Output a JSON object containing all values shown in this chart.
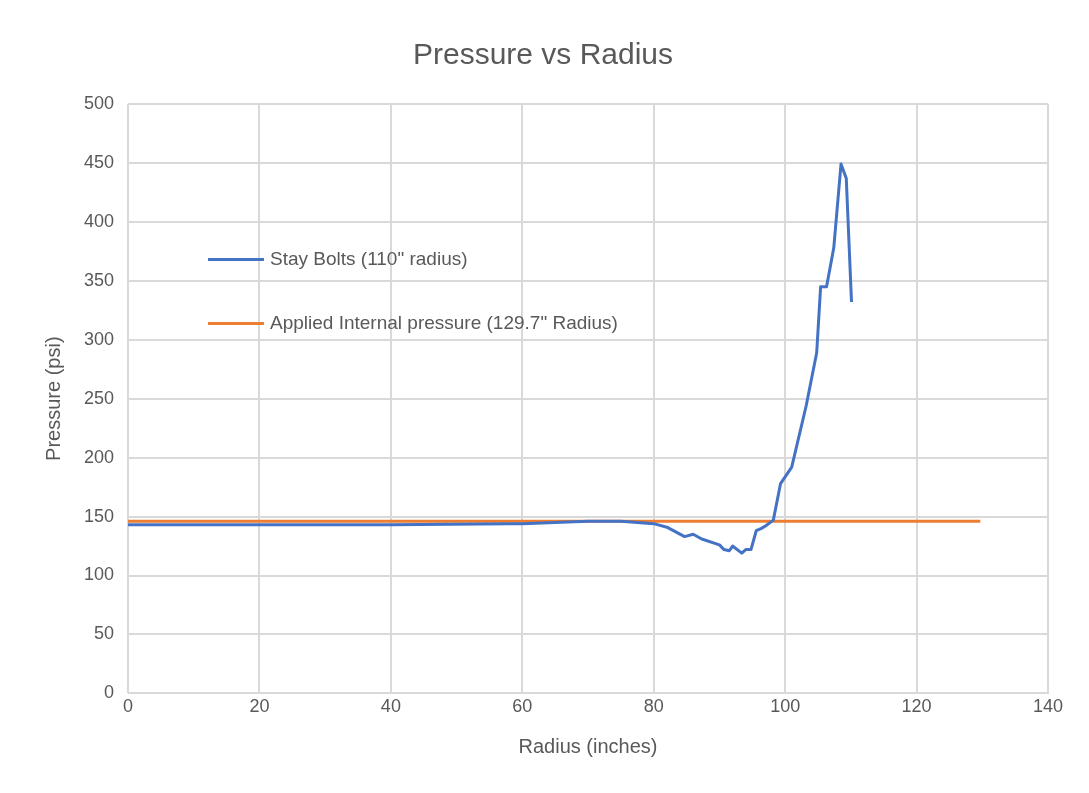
{
  "chart_data": {
    "type": "line",
    "title": "Pressure vs Radius",
    "xlabel": "Radius (inches)",
    "ylabel": "Pressure (psi)",
    "xlim": [
      0,
      140
    ],
    "xticks": [
      0,
      20,
      40,
      60,
      80,
      100,
      120,
      140
    ],
    "ylim": [
      0,
      500
    ],
    "yticks": [
      0,
      50,
      100,
      150,
      200,
      250,
      300,
      350,
      400,
      450,
      500
    ],
    "grid": true,
    "legend": "top left",
    "marker": "none",
    "line_style": "solid",
    "series": [
      {
        "name": "Stay Bolts (110\" radius)",
        "color": "#4472c4",
        "x": [
          0,
          20,
          40,
          60,
          70,
          75,
          80,
          82,
          84.7,
          86,
          87.3,
          90,
          90.7,
          91.5,
          92,
          93.4,
          94,
          94.8,
          95.6,
          96.4,
          97,
          98.2,
          99.3,
          101,
          103.2,
          104.8,
          105.4,
          106.3,
          107.4,
          108.5,
          109.3,
          110.1
        ],
        "values": [
          143,
          143,
          143,
          144,
          146,
          146,
          144,
          141,
          133,
          135,
          131,
          126,
          122,
          121,
          125,
          119,
          122,
          122,
          138,
          140,
          142,
          147,
          178,
          192,
          244,
          289,
          345,
          345,
          378,
          449,
          437,
          332
        ]
      },
      {
        "name": "Applied Internal pressure (129.7\" Radius)",
        "color": "#ed7d31",
        "x": [
          0,
          129.7
        ],
        "values": [
          146,
          146
        ]
      }
    ]
  }
}
